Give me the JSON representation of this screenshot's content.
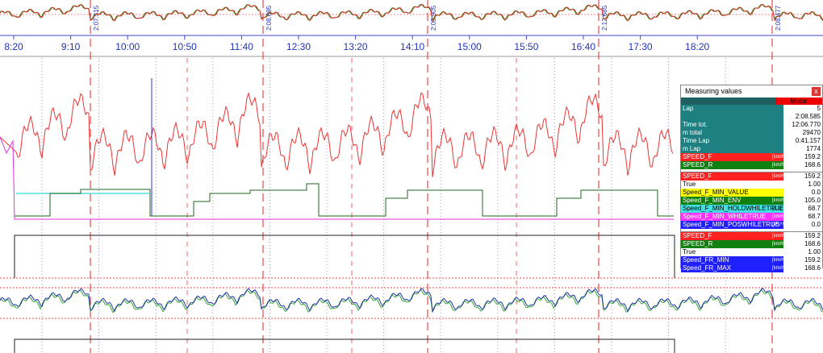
{
  "time_axis": {
    "labels": [
      "8:20",
      "9:10",
      "10:00",
      "10:50",
      "11:40",
      "12:30",
      "13:20",
      "14:10",
      "15:00",
      "15:50",
      "16:40",
      "17:30",
      "18:20"
    ]
  },
  "lap_markers": [
    "2:07.515",
    "2:08.695",
    "2:08.905",
    "2:12.685",
    "2:08.477"
  ],
  "panel": {
    "title": "Measuring values",
    "close": "x",
    "header": "Motor",
    "sections": [
      [
        {
          "label": "Lap",
          "value": "5",
          "bg": "#1e8080"
        },
        {
          "value": "2:08.585",
          "bg": "#1e8080"
        },
        {
          "label": "Time tot.",
          "value": "12:06.770",
          "bg": "#1e8080"
        },
        {
          "label": "m total",
          "value": "29470",
          "bg": "#1e8080"
        },
        {
          "label": "Time Lap",
          "value": "0:41.157",
          "bg": "#1e8080"
        },
        {
          "label": "m Lap",
          "value": "1774",
          "bg": "#1e8080"
        },
        {
          "label": "SPEED_F",
          "unit": "[km/h]",
          "value": "159.2",
          "bg": "#ff2020"
        },
        {
          "label": "SPEED_R",
          "unit": "[km/h]",
          "value": "168.6",
          "bg": "#108010"
        }
      ],
      [
        {
          "label": "SPEED_F",
          "unit": "[km/h]",
          "value": "159.2",
          "bg": "#ff2020"
        },
        {
          "label": "True",
          "value": "1.00",
          "bg": "#ffffff"
        },
        {
          "label": "Speed_F_MIN_VALUE",
          "value": "0.0",
          "bg": "#ffff00"
        },
        {
          "label": "Speed_F_MIN_ENV",
          "unit": "[km/h]",
          "value": "105.0",
          "bg": "#108010"
        },
        {
          "label": "Speed_F_MIN_HOLDWHILETRUE",
          "unit": "[1:1]",
          "value": "68.7",
          "bg": "#40e0e0"
        },
        {
          "label": "Speed_F_MIN_WHILETRUE",
          "unit": "[km/h]",
          "value": "68.7",
          "bg": "#ff30ff"
        },
        {
          "label": "Speed_F_MIN_POSWHILETRUE",
          "unit": "[l/*s*/]",
          "value": "0.0",
          "bg": "#2020ff"
        }
      ],
      [
        {
          "label": "SPEED_F",
          "unit": "[km/h]",
          "value": "159.2",
          "bg": "#ff2020"
        },
        {
          "label": "SPEED_R",
          "unit": "[km/h]",
          "value": "168.6",
          "bg": "#108010"
        },
        {
          "label": "True",
          "value": "1.00",
          "bg": "#ffffff"
        },
        {
          "label": "Speed_FR_MIN",
          "unit": "[km/h]",
          "value": "159.2",
          "bg": "#2020ff"
        },
        {
          "label": "Speed_FR_MAX",
          "unit": "[km/h]",
          "value": "168.6",
          "bg": "#2020ff"
        }
      ]
    ]
  }
}
